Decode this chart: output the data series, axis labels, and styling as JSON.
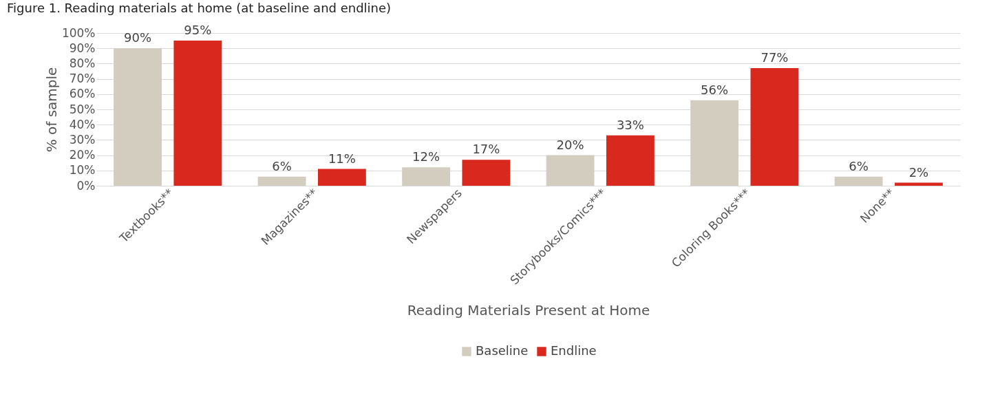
{
  "chart_data": {
    "type": "bar",
    "title": "Figure 1. Reading materials at home (at baseline and endline)",
    "xlabel": "Reading Materials Present at Home",
    "ylabel": "% of sample",
    "categories": [
      "Textbooks**",
      "Magazines**",
      "Newspapers",
      "Storybooks/Comics***",
      "Coloring Books***",
      "None**"
    ],
    "series": [
      {
        "name": "Baseline",
        "color": "#d3cdc0",
        "values": [
          90,
          6,
          12,
          20,
          56,
          6
        ],
        "value_labels": [
          "90%",
          "6%",
          "12%",
          "20%",
          "56%",
          "6%"
        ]
      },
      {
        "name": "Endline",
        "color": "#d9281e",
        "values": [
          95,
          11,
          17,
          33,
          77,
          2
        ],
        "value_labels": [
          "95%",
          "11%",
          "17%",
          "33%",
          "77%",
          "2%"
        ]
      }
    ],
    "ylim": [
      0,
      100
    ],
    "yticks": [
      {
        "value": 0,
        "label": "0%"
      },
      {
        "value": 10,
        "label": "10%"
      },
      {
        "value": 20,
        "label": "20%"
      },
      {
        "value": 30,
        "label": "30%"
      },
      {
        "value": 40,
        "label": "40%"
      },
      {
        "value": 50,
        "label": "50%"
      },
      {
        "value": 60,
        "label": "60%"
      },
      {
        "value": 70,
        "label": "70%"
      },
      {
        "value": 80,
        "label": "80%"
      },
      {
        "value": 90,
        "label": "90%"
      },
      {
        "value": 100,
        "label": "100%"
      }
    ],
    "grid": "y",
    "legend": "bottom"
  }
}
